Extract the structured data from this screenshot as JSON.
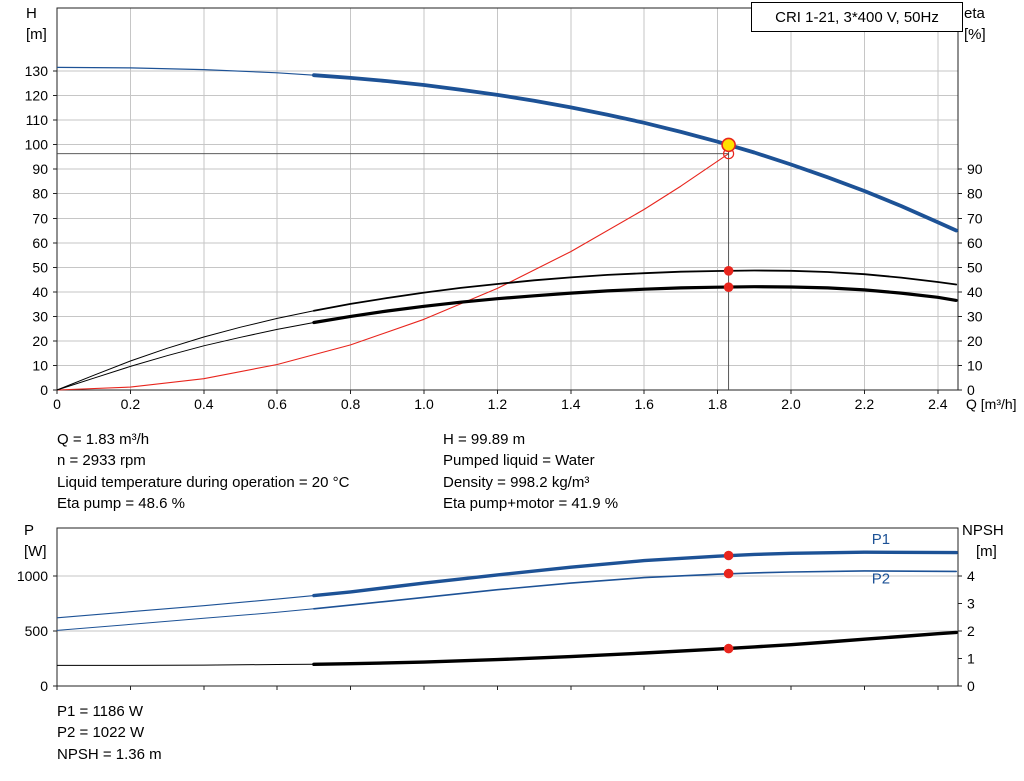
{
  "header": {
    "title": "CRI 1-21, 3*400 V, 50Hz"
  },
  "axis_labels": {
    "h": [
      "H",
      "[m]"
    ],
    "eta": [
      "eta",
      "[%]"
    ],
    "p": [
      "P",
      "[W]"
    ],
    "npsh": [
      "NPSH",
      "[m]"
    ]
  },
  "results_top": {
    "left": [
      "Q = 1.83 m³/h",
      "n = 2933 rpm",
      "Liquid temperature during operation = 20 °C",
      "Eta pump = 48.6 %"
    ],
    "right": [
      "H = 99.89 m",
      "Pumped liquid = Water",
      "Density = 998.2 kg/m³",
      "Eta pump+motor = 41.9 %"
    ]
  },
  "results_bottom": [
    "P1 = 1186 W",
    "P2 = 1022 W",
    "NPSH = 1.36 m"
  ],
  "colors": {
    "pump_blue": "#1d5296",
    "red": "#e8251d",
    "yellow": "#ffe000",
    "black": "#000000",
    "grid": "#c6c6c6"
  },
  "chart_data": [
    {
      "type": "line",
      "title": "CRI 1-21, 3*400 V, 50Hz",
      "x": {
        "label": "Q [m³/h]",
        "min": 0,
        "max": 2.455,
        "tick_values": [
          0,
          0.2,
          0.4,
          0.6,
          0.8,
          1.0,
          1.2,
          1.4,
          1.6,
          1.8,
          2.0,
          2.2,
          2.4
        ],
        "tick_labels": [
          "0",
          "0.2",
          "0.4",
          "0.6",
          "0.8",
          "1.0",
          "1.2",
          "1.4",
          "1.6",
          "1.8",
          "2.0",
          "2.2",
          "2.4"
        ]
      },
      "y_left": {
        "label": "H [m]",
        "min": 0,
        "max": 155.7,
        "tick_values": [
          0,
          10,
          20,
          30,
          40,
          50,
          60,
          70,
          80,
          90,
          100,
          110,
          120,
          130
        ],
        "tick_labels": [
          "0",
          "10",
          "20",
          "30",
          "40",
          "50",
          "60",
          "70",
          "80",
          "90",
          "100",
          "110",
          "120",
          "130"
        ]
      },
      "y_right": {
        "label": "eta [%]",
        "min": 0,
        "max": 155.7,
        "tick_values": [
          0,
          10,
          20,
          30,
          40,
          50,
          60,
          70,
          80,
          90
        ],
        "tick_labels": [
          "0",
          "10",
          "20",
          "30",
          "40",
          "50",
          "60",
          "70",
          "80",
          "90"
        ]
      },
      "grid": {
        "vertical": true,
        "horizontal": true,
        "color": "#c6c6c6"
      },
      "series": [
        {
          "name": "system-curve",
          "axis": "left",
          "color": "#e8251d",
          "width": 1.1,
          "points": [
            [
              0,
              0
            ],
            [
              0.2,
              1.2
            ],
            [
              0.4,
              4.6
            ],
            [
              0.6,
              10.4
            ],
            [
              0.8,
              18.4
            ],
            [
              1.0,
              28.8
            ],
            [
              1.2,
              41.4
            ],
            [
              1.4,
              56.4
            ],
            [
              1.6,
              73.6
            ],
            [
              1.7,
              83.1
            ],
            [
              1.83,
              96.3
            ]
          ]
        },
        {
          "name": "eta-pump-curve",
          "axis": "right",
          "color": "#000000",
          "width": 1.8,
          "thin_until": 0.7,
          "thin_width": 1,
          "points": [
            [
              0,
              0
            ],
            [
              0.1,
              6
            ],
            [
              0.2,
              11.8
            ],
            [
              0.3,
              17
            ],
            [
              0.4,
              21.6
            ],
            [
              0.5,
              25.6
            ],
            [
              0.6,
              29.2
            ],
            [
              0.7,
              32.3
            ],
            [
              0.8,
              35.1
            ],
            [
              0.9,
              37.5
            ],
            [
              1.0,
              39.7
            ],
            [
              1.1,
              41.6
            ],
            [
              1.2,
              43.2
            ],
            [
              1.3,
              44.7
            ],
            [
              1.4,
              45.9
            ],
            [
              1.5,
              46.9
            ],
            [
              1.6,
              47.6
            ],
            [
              1.7,
              48.2
            ],
            [
              1.8,
              48.5
            ],
            [
              1.9,
              48.7
            ],
            [
              2.0,
              48.6
            ],
            [
              2.1,
              48.1
            ],
            [
              2.2,
              47.2
            ],
            [
              2.3,
              45.8
            ],
            [
              2.4,
              44.0
            ],
            [
              2.45,
              43.0
            ]
          ]
        },
        {
          "name": "eta-pump-motor-curve",
          "axis": "right",
          "color": "#000000",
          "width": 3.2,
          "thin_until": 0.7,
          "thin_width": 1,
          "points": [
            [
              0,
              0
            ],
            [
              0.1,
              4.8
            ],
            [
              0.2,
              9.6
            ],
            [
              0.3,
              14
            ],
            [
              0.4,
              18
            ],
            [
              0.5,
              21.5
            ],
            [
              0.6,
              24.7
            ],
            [
              0.7,
              27.5
            ],
            [
              0.8,
              30
            ],
            [
              0.9,
              32.2
            ],
            [
              1.0,
              34.1
            ],
            [
              1.1,
              35.8
            ],
            [
              1.2,
              37.2
            ],
            [
              1.3,
              38.4
            ],
            [
              1.4,
              39.5
            ],
            [
              1.5,
              40.4
            ],
            [
              1.6,
              41.1
            ],
            [
              1.7,
              41.6
            ],
            [
              1.8,
              41.9
            ],
            [
              1.9,
              42.1
            ],
            [
              2.0,
              42.0
            ],
            [
              2.1,
              41.6
            ],
            [
              2.2,
              40.8
            ],
            [
              2.3,
              39.5
            ],
            [
              2.4,
              37.8
            ],
            [
              2.45,
              36.5
            ]
          ]
        },
        {
          "name": "pump-qh-curve",
          "axis": "left",
          "color": "#1d5296",
          "width": 3.8,
          "thin_until": 0.7,
          "thin_width": 1.2,
          "points": [
            [
              0,
              131.5
            ],
            [
              0.2,
              131.3
            ],
            [
              0.4,
              130.6
            ],
            [
              0.6,
              129.3
            ],
            [
              0.7,
              128.3
            ],
            [
              0.8,
              127.2
            ],
            [
              0.9,
              125.9
            ],
            [
              1.0,
              124.3
            ],
            [
              1.1,
              122.4
            ],
            [
              1.2,
              120.3
            ],
            [
              1.3,
              117.9
            ],
            [
              1.4,
              115.2
            ],
            [
              1.5,
              112.2
            ],
            [
              1.6,
              108.9
            ],
            [
              1.7,
              105.2
            ],
            [
              1.8,
              101.2
            ],
            [
              1.9,
              96.8
            ],
            [
              2.0,
              91.9
            ],
            [
              2.1,
              86.7
            ],
            [
              2.2,
              81.1
            ],
            [
              2.3,
              75.0
            ],
            [
              2.4,
              68.4
            ],
            [
              2.45,
              65.0
            ]
          ]
        }
      ],
      "annotations": {
        "lines": [
          {
            "type": "v",
            "x": 1.83,
            "y1": 0,
            "y2": 99.89,
            "axis": "left"
          },
          {
            "type": "h",
            "y": 96.3,
            "x1": 0,
            "x2": 1.83,
            "axis": "left"
          }
        ],
        "markers": [
          {
            "name": "system-intersection-ring",
            "x": 1.83,
            "y": 96.3,
            "axis": "left",
            "style": "ring",
            "stroke": "#e8251d"
          },
          {
            "name": "duty-point",
            "x": 1.83,
            "y": 99.89,
            "axis": "left",
            "style": "duty",
            "fill": "#ffe000",
            "stroke": "#e8251d"
          },
          {
            "name": "eta-pump-point",
            "x": 1.83,
            "y": 48.6,
            "axis": "right",
            "style": "dot",
            "fill": "#e8251d"
          },
          {
            "name": "eta-pump-motor-point",
            "x": 1.83,
            "y": 41.9,
            "axis": "right",
            "style": "dot",
            "fill": "#e8251d"
          }
        ],
        "labels": []
      }
    },
    {
      "type": "line",
      "title": "",
      "x": {
        "label": "",
        "min": 0,
        "max": 2.455,
        "tick_values": [
          0,
          0.2,
          0.4,
          0.6,
          0.8,
          1.0,
          1.2,
          1.4,
          1.6,
          1.8,
          2.0,
          2.2,
          2.4
        ],
        "tick_labels": [
          "",
          "",
          "",
          "",
          "",
          "",
          "",
          "",
          "",
          "",
          "",
          "",
          ""
        ]
      },
      "y_left": {
        "label": "P [W]",
        "min": 0,
        "max": 1436,
        "tick_values": [
          0,
          500,
          1000
        ],
        "tick_labels": [
          "0",
          "500",
          "1000"
        ]
      },
      "y_right": {
        "label": "NPSH [m]",
        "min": 0,
        "max": 5.745,
        "tick_values": [
          0,
          1,
          2,
          3,
          4
        ],
        "tick_labels": [
          "0",
          "1",
          "2",
          "3",
          "4"
        ]
      },
      "grid": {
        "vertical": false,
        "horizontal": true,
        "color": "#c6c6c6"
      },
      "series": [
        {
          "name": "p1-curve",
          "axis": "left",
          "color": "#1d5296",
          "width": 3.4,
          "thin_until": 0.7,
          "thin_width": 1.1,
          "points": [
            [
              0,
              620
            ],
            [
              0.2,
              675
            ],
            [
              0.4,
              730
            ],
            [
              0.6,
              790
            ],
            [
              0.7,
              822
            ],
            [
              0.8,
              855
            ],
            [
              0.9,
              895
            ],
            [
              1.0,
              935
            ],
            [
              1.2,
              1010
            ],
            [
              1.4,
              1080
            ],
            [
              1.6,
              1140
            ],
            [
              1.8,
              1180
            ],
            [
              1.9,
              1196
            ],
            [
              2.0,
              1206
            ],
            [
              2.2,
              1216
            ],
            [
              2.45,
              1212
            ]
          ]
        },
        {
          "name": "p2-curve",
          "axis": "left",
          "color": "#1d5296",
          "width": 1.6,
          "thin_until": 0.7,
          "thin_width": 1,
          "points": [
            [
              0,
              505
            ],
            [
              0.2,
              560
            ],
            [
              0.4,
              615
            ],
            [
              0.6,
              670
            ],
            [
              0.7,
              702
            ],
            [
              0.8,
              735
            ],
            [
              0.9,
              770
            ],
            [
              1.0,
              805
            ],
            [
              1.2,
              875
            ],
            [
              1.4,
              935
            ],
            [
              1.6,
              985
            ],
            [
              1.8,
              1016
            ],
            [
              1.9,
              1028
            ],
            [
              2.0,
              1036
            ],
            [
              2.2,
              1046
            ],
            [
              2.45,
              1042
            ]
          ]
        },
        {
          "name": "npsh-curve",
          "axis": "right",
          "color": "#000000",
          "width": 3.4,
          "thin_until": 0.7,
          "thin_width": 1,
          "points": [
            [
              0,
              0.75
            ],
            [
              0.2,
              0.75
            ],
            [
              0.4,
              0.76
            ],
            [
              0.6,
              0.78
            ],
            [
              0.7,
              0.79
            ],
            [
              0.8,
              0.81
            ],
            [
              1.0,
              0.87
            ],
            [
              1.2,
              0.96
            ],
            [
              1.4,
              1.07
            ],
            [
              1.6,
              1.2
            ],
            [
              1.8,
              1.34
            ],
            [
              1.9,
              1.42
            ],
            [
              2.0,
              1.5
            ],
            [
              2.1,
              1.6
            ],
            [
              2.2,
              1.7
            ],
            [
              2.3,
              1.8
            ],
            [
              2.4,
              1.9
            ],
            [
              2.45,
              1.95
            ]
          ]
        }
      ],
      "annotations": {
        "lines": [],
        "markers": [
          {
            "name": "p1-point",
            "x": 1.83,
            "y": 1186,
            "axis": "left",
            "style": "dot",
            "fill": "#e8251d"
          },
          {
            "name": "p2-point",
            "x": 1.83,
            "y": 1022,
            "axis": "left",
            "style": "dot",
            "fill": "#e8251d"
          },
          {
            "name": "npsh-point",
            "x": 1.83,
            "y": 1.36,
            "axis": "right",
            "style": "dot",
            "fill": "#e8251d"
          }
        ],
        "labels": [
          {
            "name": "p1-label",
            "text": "P1",
            "x": 2.22,
            "y": 1290,
            "axis": "left",
            "color": "#1d5296"
          },
          {
            "name": "p2-label",
            "text": "P2",
            "x": 2.22,
            "y": 930,
            "axis": "left",
            "color": "#1d5296"
          }
        ]
      }
    }
  ]
}
